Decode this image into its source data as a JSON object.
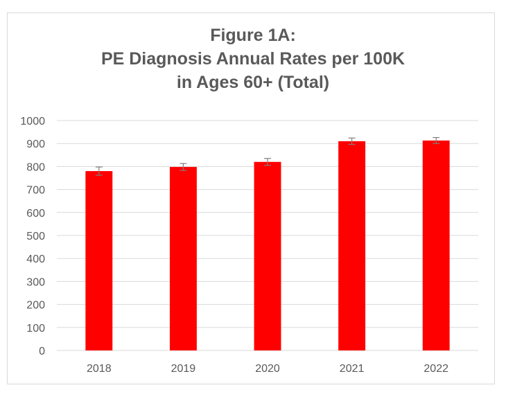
{
  "chart_data": {
    "type": "bar",
    "title_lines": [
      "Figure 1A:",
      "PE Diagnosis Annual Rates per 100K",
      "in Ages 60+ (Total)"
    ],
    "categories": [
      "2018",
      "2019",
      "2020",
      "2021",
      "2022"
    ],
    "values": [
      780,
      798,
      820,
      910,
      913
    ],
    "error_bars": [
      18,
      15,
      15,
      14,
      13
    ],
    "ylim": [
      0,
      1000
    ],
    "yticks": [
      0,
      100,
      200,
      300,
      400,
      500,
      600,
      700,
      800,
      900,
      1000
    ],
    "xlabel": "",
    "ylabel": "",
    "grid": true,
    "legend": "none",
    "bar_color": "#ff0000",
    "error_color": "#7f7f7f",
    "grid_color": "#d9d9d9"
  }
}
